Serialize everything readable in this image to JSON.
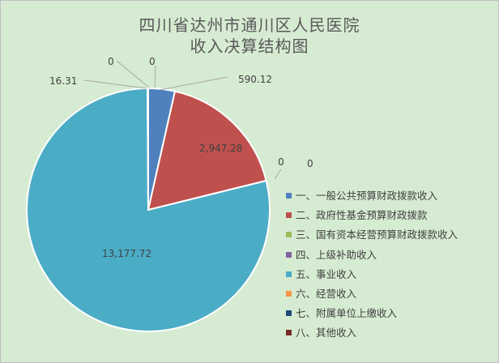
{
  "chart_data": {
    "type": "pie",
    "title_lines": [
      "四川省达州市通川区人民医院",
      "收入决算结构图"
    ],
    "slices": [
      {
        "name": "一、一般公共预算财政拨款收入",
        "value": 590.12,
        "label": "590.12",
        "color": "#4f81bd"
      },
      {
        "name": "二、政府性基金预算财政拨款",
        "value": 2947.28,
        "label": "2,947.28",
        "color": "#c0504d"
      },
      {
        "name": "三、国有资本经营预算财政拨款收入",
        "value": 0,
        "label": "0",
        "color": "#9bbb59"
      },
      {
        "name": "四、上级补助收入",
        "value": 0,
        "label": "0",
        "color": "#8064a2"
      },
      {
        "name": "五、事业收入",
        "value": 13177.72,
        "label": "13,177.72",
        "color": "#4bacc6"
      },
      {
        "name": "六、经营收入",
        "value": 0,
        "label": "0",
        "color": "#f79646"
      },
      {
        "name": "七、附属单位上缴收入",
        "value": 16.31,
        "label": "16.31",
        "color": "#1f497d"
      },
      {
        "name": "八、其他收入",
        "value": 0,
        "label": "0",
        "color": "#772c2a"
      }
    ],
    "legend_position": "right"
  }
}
